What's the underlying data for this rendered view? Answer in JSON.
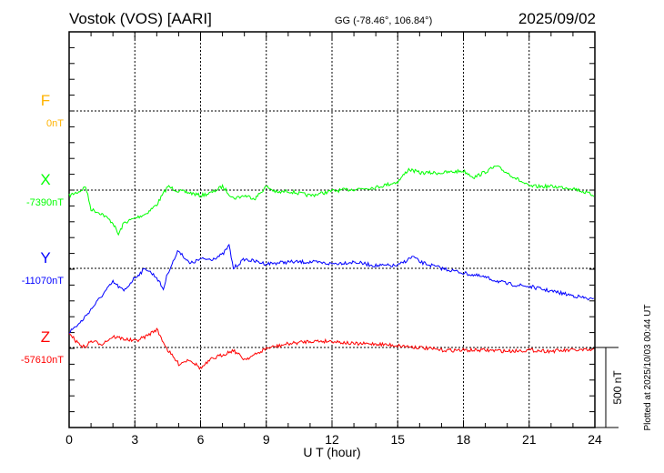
{
  "chart_data": {
    "type": "line",
    "title": "Vostok (VOS)  [AARI]",
    "coords": "GG (-78.46°, 106.84°)",
    "date": "2025/09/02",
    "xlabel": "U T (hour)",
    "xlim": [
      0,
      24
    ],
    "xticks": [
      "0",
      "3",
      "6",
      "9",
      "12",
      "15",
      "18",
      "21",
      "24"
    ],
    "scale_label": "500 nT",
    "scale_nT": 500,
    "plotted_note": "Plotted at 2025/10/03 00:44 UT",
    "grid": true,
    "series": [
      {
        "name": "F",
        "baseline_label": "0nT",
        "color": "#ffb300",
        "x": [],
        "values": []
      },
      {
        "name": "X",
        "baseline_label": "-7390nT",
        "color": "#00ff00",
        "x": [
          0,
          0.5,
          0.75,
          1,
          1.5,
          2,
          2.25,
          2.5,
          3,
          3.5,
          4,
          4.5,
          5,
          5.5,
          6,
          6.5,
          7,
          7.5,
          8,
          8.5,
          9,
          9.5,
          10,
          11,
          12,
          13,
          14,
          15,
          15.5,
          16,
          17,
          18,
          18.5,
          19.5,
          20,
          21,
          22,
          23,
          24
        ],
        "values": [
          -35,
          -6,
          23,
          -121,
          -150,
          -207,
          -282,
          -207,
          -178,
          -150,
          -92,
          23,
          -6,
          -17,
          -35,
          -17,
          23,
          -52,
          -35,
          -52,
          23,
          -17,
          -6,
          -35,
          -6,
          6,
          17,
          52,
          132,
          109,
          109,
          121,
          81,
          150,
          109,
          23,
          23,
          12,
          -35
        ]
      },
      {
        "name": "Y",
        "baseline_label": "-11070nT",
        "color": "#0000ff",
        "x": [
          0,
          0.5,
          1,
          1.5,
          2,
          2.5,
          3,
          3.5,
          4,
          4.3,
          4.5,
          5,
          5.5,
          6,
          6.5,
          7,
          7.3,
          7.5,
          8,
          9,
          10,
          11,
          12,
          13,
          14,
          15,
          15.7,
          16,
          17,
          18,
          19,
          20,
          21,
          22,
          23,
          24
        ],
        "values": [
          -402,
          -345,
          -259,
          -172,
          -86,
          -144,
          -58,
          0,
          -58,
          -132,
          -29,
          115,
          29,
          58,
          58,
          86,
          144,
          0,
          58,
          29,
          40,
          40,
          29,
          40,
          17,
          17,
          75,
          40,
          0,
          -29,
          -58,
          -98,
          -115,
          -144,
          -172,
          -201
        ]
      },
      {
        "name": "Z",
        "baseline_label": "-57610nT",
        "color": "#ff0000",
        "x": [
          0,
          0.3,
          0.7,
          1,
          1.5,
          2,
          3,
          3.5,
          4,
          4.5,
          5,
          5.5,
          6,
          6.5,
          7,
          7.5,
          8,
          8.5,
          9,
          10,
          11,
          12,
          13,
          14,
          15,
          16,
          17,
          18,
          19,
          20,
          21,
          22,
          23,
          24
        ],
        "values": [
          98,
          40,
          0,
          40,
          23,
          69,
          40,
          69,
          115,
          -17,
          -104,
          -75,
          -132,
          -75,
          -46,
          -17,
          -75,
          -46,
          -6,
          23,
          40,
          40,
          23,
          23,
          12,
          0,
          -17,
          -17,
          -17,
          -23,
          -17,
          -23,
          -17,
          -17
        ]
      }
    ]
  }
}
